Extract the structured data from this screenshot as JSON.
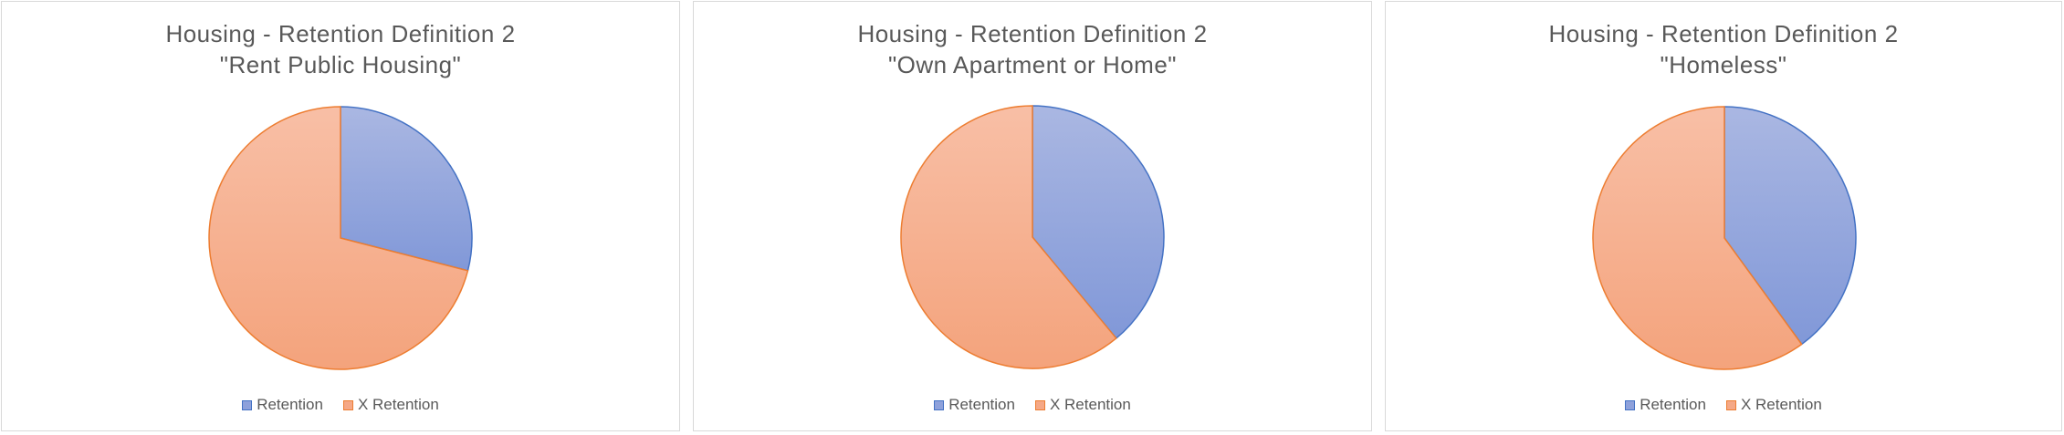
{
  "legend_labels": [
    "Retention",
    "X Retention"
  ],
  "colors": {
    "retention_top": "#aab7e2",
    "retention_bottom": "#8198d8",
    "retention_stroke": "#4472c4",
    "xretention_top": "#f8bfa6",
    "xretention_bottom": "#f4a37c",
    "xretention_stroke": "#ed7d31"
  },
  "chart_data": [
    {
      "type": "pie",
      "title_line1": "Housing - Retention Definition 2",
      "title_line2": "\"Rent Public Housing\"",
      "categories": [
        "Retention",
        "X Retention"
      ],
      "values": [
        29,
        71
      ],
      "legend_position": "bottom"
    },
    {
      "type": "pie",
      "title_line1": "Housing - Retention Definition 2",
      "title_line2": "\"Own Apartment or Home\"",
      "categories": [
        "Retention",
        "X Retention"
      ],
      "values": [
        39,
        61
      ],
      "legend_position": "bottom"
    },
    {
      "type": "pie",
      "title_line1": "Housing - Retention Definition 2",
      "title_line2": "\"Homeless\"",
      "categories": [
        "Retention",
        "X Retention"
      ],
      "values": [
        40,
        60
      ],
      "legend_position": "bottom"
    }
  ]
}
